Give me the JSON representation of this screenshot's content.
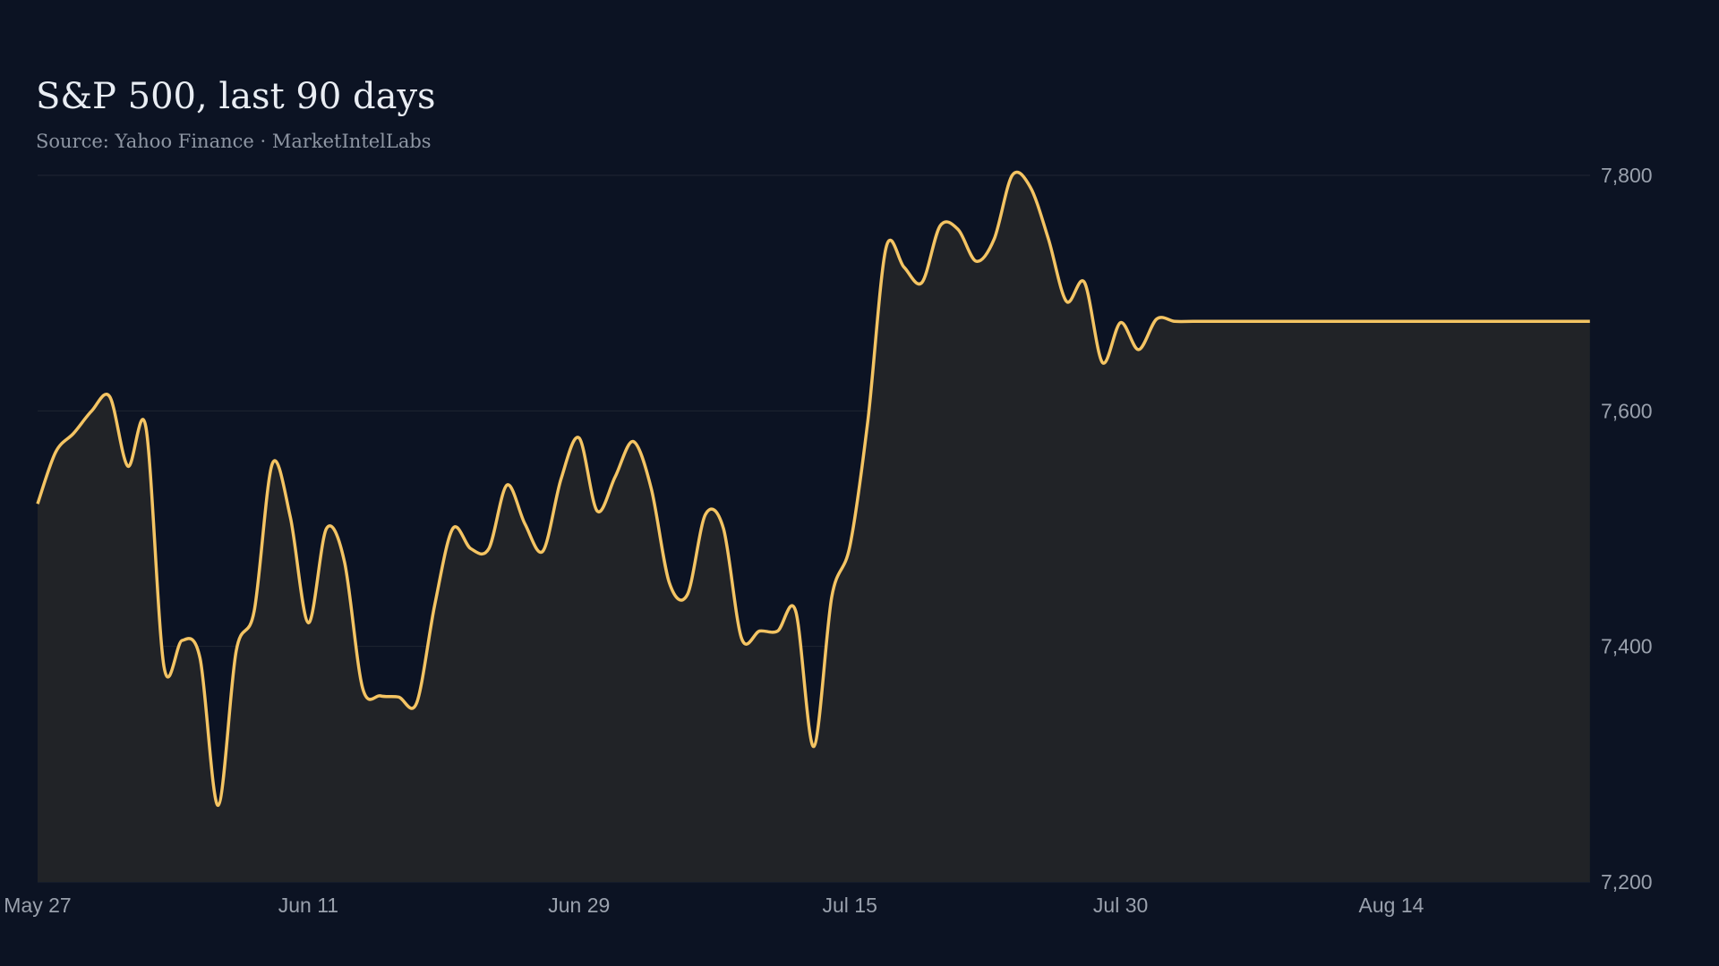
{
  "chart_data": {
    "type": "area",
    "title": "S&P 500, last 90 days",
    "subtitle": "Source: Yahoo Finance · MarketIntelLabs",
    "ylim": [
      7200,
      7800
    ],
    "y_ticks": [
      7200,
      7400,
      7600,
      7800
    ],
    "y_tick_labels": [
      "7,200",
      "7,400",
      "7,600",
      "7,800"
    ],
    "x_tick_labels": [
      "May 27",
      "Jun 11",
      "Jun 29",
      "Jul 15",
      "Jul 30",
      "Aug 14"
    ],
    "x_tick_days": [
      0,
      15,
      30,
      45,
      60,
      75
    ],
    "grid": true,
    "y_axis_side": "right",
    "colors": {
      "background": "#0c1323",
      "line": "#f4c463",
      "fill": "#212327",
      "grid": "#1f2633",
      "text": "#9aa1ad"
    },
    "series": [
      {
        "x_days": [
          0,
          1,
          2,
          3,
          4,
          5,
          6,
          7,
          8,
          9,
          10,
          11,
          12,
          13,
          14,
          15,
          16,
          17,
          18,
          19,
          20,
          21,
          22,
          23,
          24,
          25,
          26,
          27,
          28,
          29,
          30,
          31,
          32,
          33,
          34,
          35,
          36,
          37,
          38,
          39,
          40,
          41,
          42,
          43,
          44,
          45,
          46,
          47,
          48,
          49,
          50,
          51,
          52,
          53,
          54,
          55,
          56,
          57,
          58,
          59,
          60,
          61,
          62,
          63,
          64,
          65,
          66,
          67,
          68,
          69,
          70,
          71,
          72,
          73,
          74,
          75,
          76,
          77,
          78,
          79,
          80,
          81,
          82,
          83,
          84,
          85,
          86
        ],
        "values": [
          7521,
          7565,
          7581,
          7600,
          7612,
          7553,
          7586,
          7383,
          7405,
          7390,
          7265,
          7396,
          7430,
          7555,
          7510,
          7420,
          7500,
          7472,
          7365,
          7358,
          7357,
          7352,
          7435,
          7500,
          7483,
          7483,
          7537,
          7504,
          7481,
          7542,
          7577,
          7515,
          7544,
          7574,
          7534,
          7454,
          7444,
          7512,
          7500,
          7407,
          7413,
          7413,
          7430,
          7315,
          7442,
          7485,
          7592,
          7738,
          7722,
          7709,
          7757,
          7754,
          7727,
          7746,
          7800,
          7790,
          7746,
          7693,
          7709,
          7641,
          7675,
          7652,
          7678,
          7676,
          7676,
          7676,
          7676,
          7676,
          7676,
          7676,
          7676,
          7676,
          7676,
          7676,
          7676,
          7676,
          7676,
          7676,
          7676,
          7676,
          7676,
          7676,
          7676,
          7676,
          7676,
          7676,
          7676
        ]
      }
    ]
  }
}
